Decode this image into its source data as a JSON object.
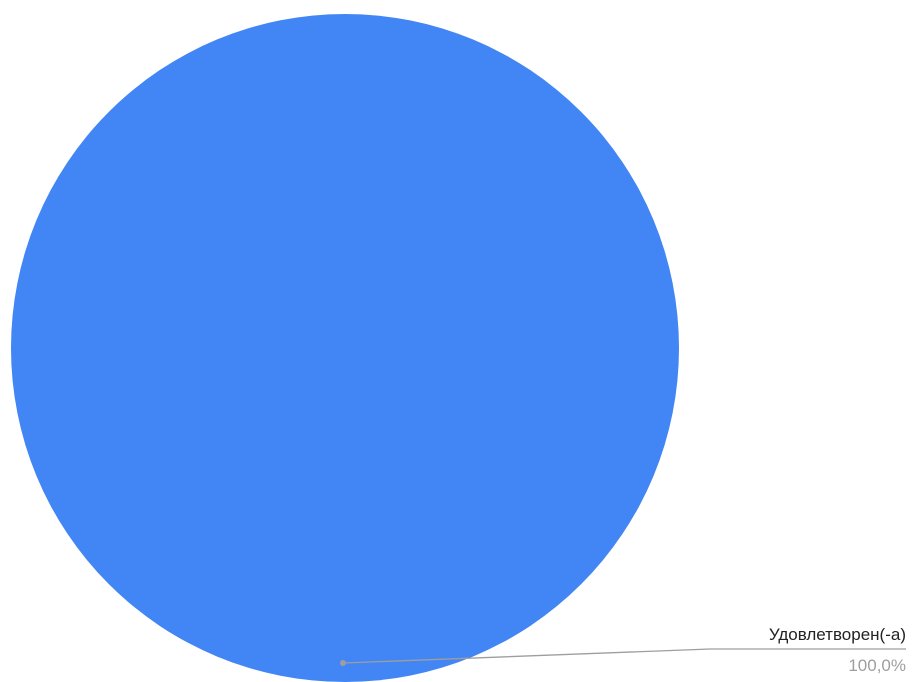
{
  "chart_data": {
    "type": "pie",
    "slices": [
      {
        "label": "Удовлетворен(-а)",
        "value": 100.0,
        "value_label": "100,0%",
        "color": "#4285f4"
      }
    ]
  },
  "colors": {
    "background": "#ffffff",
    "leader_line": "#9e9e9e",
    "leader_dot": "#9e9e9e",
    "label_text": "#222222",
    "value_text": "#9e9e9e"
  }
}
